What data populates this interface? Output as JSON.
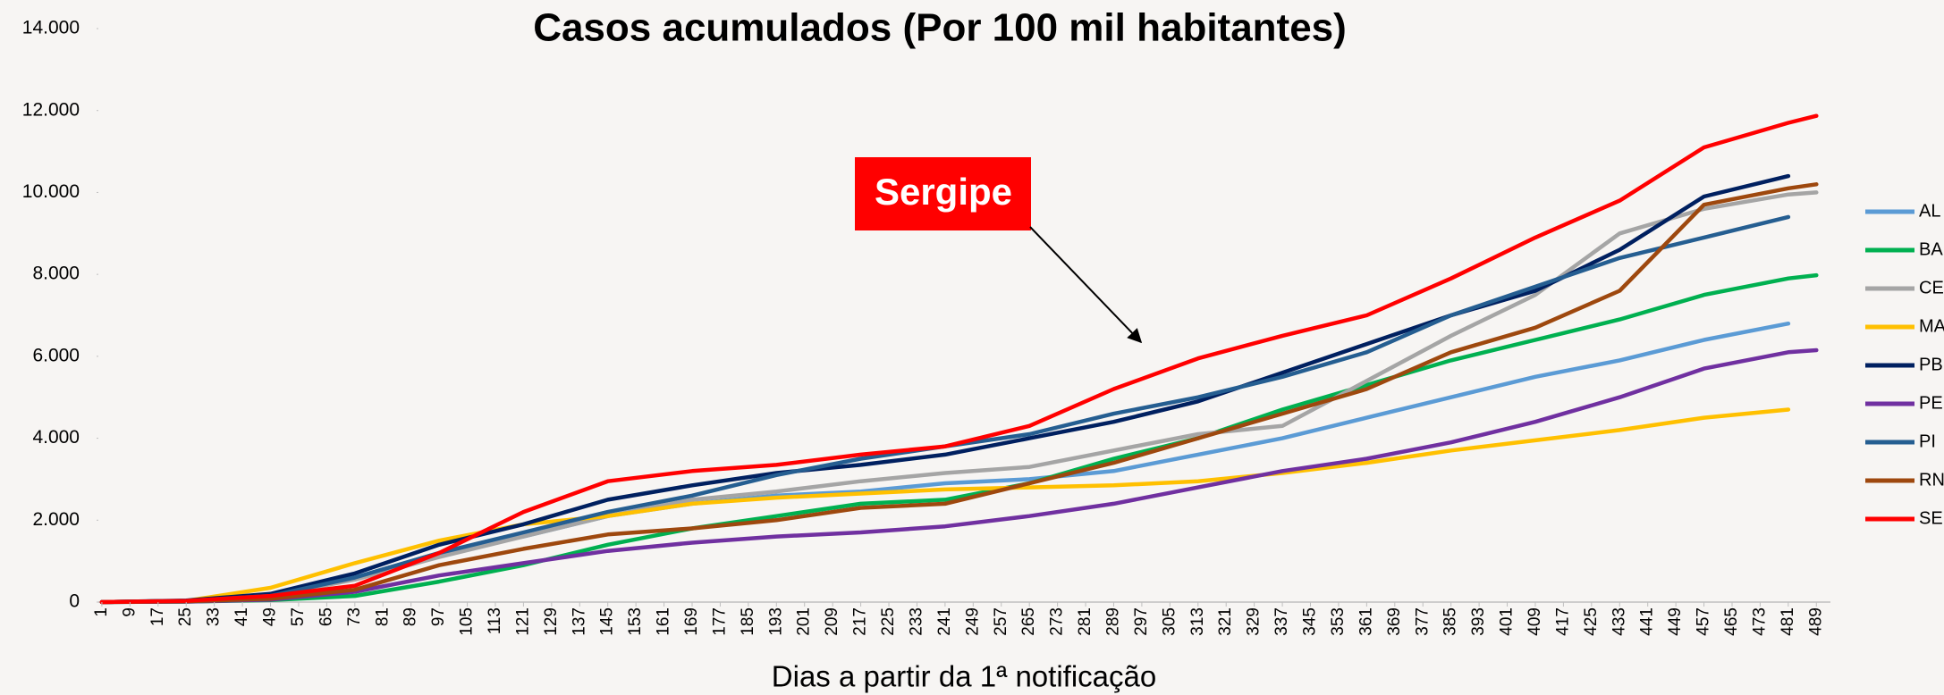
{
  "chart_data": {
    "type": "line",
    "title": "Casos acumulados (Por 100 mil habitantes)",
    "x_label": "Dias a partir da 1ª notificação",
    "annotation": "Sergipe",
    "x": [
      1,
      25,
      49,
      73,
      97,
      121,
      145,
      169,
      193,
      217,
      241,
      265,
      289,
      313,
      337,
      361,
      385,
      409,
      433,
      457,
      481,
      489
    ],
    "series": [
      {
        "name": "AL",
        "color": "#5b9bd5",
        "values": [
          0,
          30,
          150,
          600,
          1200,
          1600,
          2100,
          2400,
          2600,
          2700,
          2900,
          3000,
          3200,
          3600,
          4000,
          4500,
          5000,
          5500,
          5900,
          6400,
          6800,
          null
        ]
      },
      {
        "name": "BA",
        "color": "#00b050",
        "values": [
          0,
          10,
          50,
          150,
          500,
          900,
          1400,
          1800,
          2100,
          2400,
          2500,
          2900,
          3500,
          4000,
          4700,
          5300,
          5900,
          6400,
          6900,
          7500,
          7900,
          7980
        ]
      },
      {
        "name": "CE",
        "color": "#a5a5a5",
        "values": [
          0,
          30,
          150,
          550,
          1100,
          1600,
          2100,
          2500,
          2700,
          2950,
          3150,
          3300,
          3700,
          4100,
          4300,
          5400,
          6500,
          7500,
          9000,
          9600,
          9950,
          10000
        ]
      },
      {
        "name": "MA",
        "color": "#ffc000",
        "values": [
          0,
          30,
          350,
          950,
          1500,
          1900,
          2100,
          2400,
          2550,
          2650,
          2750,
          2800,
          2850,
          2950,
          3150,
          3400,
          3700,
          3950,
          4200,
          4500,
          4700,
          null
        ]
      },
      {
        "name": "PB",
        "color": "#002060",
        "values": [
          0,
          40,
          200,
          700,
          1400,
          1900,
          2500,
          2850,
          3150,
          3350,
          3600,
          4000,
          4400,
          4900,
          5600,
          6300,
          7000,
          7600,
          8600,
          9900,
          10400,
          null
        ]
      },
      {
        "name": "PE",
        "color": "#7030a0",
        "values": [
          0,
          10,
          60,
          250,
          650,
          950,
          1250,
          1450,
          1600,
          1700,
          1850,
          2100,
          2400,
          2800,
          3200,
          3500,
          3900,
          4400,
          5000,
          5700,
          6100,
          6150
        ]
      },
      {
        "name": "PI",
        "color": "#255e91",
        "values": [
          0,
          30,
          150,
          600,
          1200,
          1700,
          2200,
          2600,
          3100,
          3500,
          3800,
          4100,
          4600,
          5000,
          5500,
          6100,
          7000,
          7700,
          8400,
          8900,
          9400,
          null
        ]
      },
      {
        "name": "RN",
        "color": "#9e480e",
        "values": [
          0,
          20,
          80,
          300,
          900,
          1300,
          1650,
          1800,
          2000,
          2300,
          2400,
          2900,
          3400,
          4000,
          4600,
          5200,
          6100,
          6700,
          7600,
          9700,
          10100,
          10200
        ]
      },
      {
        "name": "SE",
        "color": "#ff0000",
        "values": [
          0,
          30,
          150,
          400,
          1200,
          2200,
          2950,
          3200,
          3350,
          3600,
          3800,
          4300,
          5200,
          5950,
          6500,
          7000,
          7900,
          8900,
          9800,
          11100,
          11700,
          11870
        ]
      }
    ],
    "xlim": [
      0,
      493
    ],
    "xticks": [
      1,
      9,
      17,
      25,
      33,
      41,
      49,
      57,
      65,
      73,
      81,
      89,
      97,
      105,
      113,
      121,
      129,
      137,
      145,
      153,
      161,
      169,
      177,
      185,
      193,
      201,
      209,
      217,
      225,
      233,
      241,
      249,
      257,
      265,
      273,
      281,
      289,
      297,
      305,
      313,
      321,
      329,
      337,
      345,
      353,
      361,
      369,
      377,
      385,
      393,
      401,
      409,
      417,
      425,
      433,
      441,
      449,
      457,
      465,
      473,
      481,
      489
    ],
    "ylim": [
      0,
      14000
    ],
    "yticks": [
      0,
      {
        "value": 2000,
        "label": "2.000"
      },
      {
        "value": 4000,
        "label": "4.000"
      },
      {
        "value": 6000,
        "label": "6.000"
      },
      {
        "value": 8000,
        "label": "8.000"
      },
      {
        "value": 10000,
        "label": "10.000"
      },
      {
        "value": 12000,
        "label": "12.000"
      },
      {
        "value": 14000,
        "label": "14.000"
      }
    ],
    "grid": false,
    "legend": "right"
  }
}
